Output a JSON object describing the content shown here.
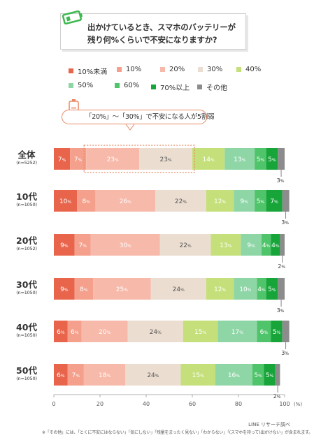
{
  "title": {
    "line1": "出かけているとき、スマホのバッテリーが",
    "line2": "残り何%くらいで不安になりますか?"
  },
  "callout": "「20%」〜「30%」で不安になる人が5割弱",
  "source": "LINE リサーチ調べ",
  "footnote": "※「その他」には、「とくに不安にはならない」「気にしない」「残量をまったく見ない」「わからない」「(スマホを持って)出かけない」が含まれます。",
  "colors": {
    "lt10": "#e8654c",
    "p10": "#f4a08c",
    "p20": "#f7b9aa",
    "p30": "#ebddd0",
    "p40": "#c5e07a",
    "p50": "#8fd6a7",
    "p60": "#4fc46a",
    "p70": "#17a53a",
    "other": "#8c8c8c",
    "callout_border": "#e78a63"
  },
  "chart_data": {
    "type": "bar",
    "orientation": "horizontal",
    "stacked": true,
    "unit": "%",
    "categories": [
      {
        "label": "全体",
        "n": "(n=5252)"
      },
      {
        "label": "10代",
        "n": "(n=1050)"
      },
      {
        "label": "20代",
        "n": "(n=1052)"
      },
      {
        "label": "30代",
        "n": "(n=1050)"
      },
      {
        "label": "40代",
        "n": "(n=1050)"
      },
      {
        "label": "50代",
        "n": "(n=1050)"
      }
    ],
    "series": [
      {
        "name": "10%未満",
        "color_key": "lt10",
        "values": [
          7,
          10,
          9,
          9,
          6,
          6
        ]
      },
      {
        "name": "10%",
        "color_key": "p10",
        "values": [
          7,
          8,
          7,
          8,
          6,
          7
        ]
      },
      {
        "name": "20%",
        "color_key": "p20",
        "values": [
          23,
          26,
          30,
          25,
          20,
          18
        ]
      },
      {
        "name": "30%",
        "color_key": "p30",
        "values": [
          23,
          22,
          22,
          24,
          24,
          24
        ]
      },
      {
        "name": "40%",
        "color_key": "p40",
        "values": [
          14,
          12,
          13,
          12,
          15,
          15
        ]
      },
      {
        "name": "50%",
        "color_key": "p50",
        "values": [
          13,
          9,
          9,
          10,
          17,
          16
        ]
      },
      {
        "name": "60%",
        "color_key": "p60",
        "values": [
          5,
          5,
          4,
          4,
          6,
          5
        ]
      },
      {
        "name": "70%以上",
        "color_key": "p70",
        "values": [
          5,
          7,
          4,
          5,
          5,
          5
        ]
      },
      {
        "name": "その他",
        "color_key": "other",
        "values": [
          3,
          3,
          2,
          3,
          3,
          2
        ]
      }
    ],
    "xlim": [
      0,
      100
    ],
    "x_ticks": [
      "0",
      "20",
      "40",
      "60",
      "80",
      "100"
    ],
    "x_unit_label": "(%)",
    "highlight_row": 0,
    "highlight_series": [
      "20%",
      "30%"
    ]
  }
}
